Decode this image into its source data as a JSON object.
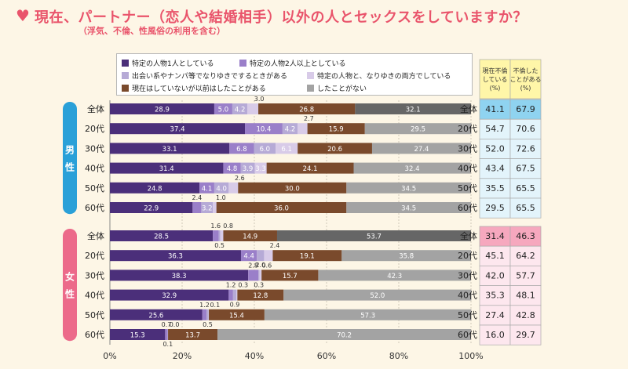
{
  "title": "現在、パートナー（恋人や結婚相手）以外の人とセックスをしていますか？",
  "subtitle": "（浮気、不倫、性風俗の利用を含む）",
  "colors": [
    "#4b2f7a",
    "#9a7fc9",
    "#b6aad6",
    "#d8cbe8",
    "#7a4a2c",
    "#a3a3a3"
  ],
  "overall_color": "#666666",
  "chart_data": {
    "type": "bar",
    "orientation": "horizontal-stacked-100",
    "xlim": [
      0,
      100
    ],
    "xticks": [
      "0%",
      "20%",
      "40%",
      "60%",
      "80%",
      "100%"
    ],
    "legend": [
      "特定の人物1人としている",
      "特定の人物2人以上としている",
      "出会い系やナンパ等でなりゆきでするときがある",
      "特定の人物と、なりゆきの両方でしている",
      "現在はしていないが以前はしたことがある",
      "したことがない"
    ],
    "groups": [
      {
        "label": "男性",
        "rows": [
          {
            "label": "全体",
            "values": [
              28.9,
              5.0,
              4.2,
              3.0,
              26.8,
              32.1
            ],
            "current": "41.1",
            "ever": "67.9"
          },
          {
            "label": "20代",
            "values": [
              37.4,
              10.4,
              4.2,
              2.7,
              15.9,
              29.5
            ],
            "current": "54.7",
            "ever": "70.6"
          },
          {
            "label": "30代",
            "values": [
              33.1,
              6.8,
              6.0,
              6.1,
              20.6,
              27.4
            ],
            "current": "52.0",
            "ever": "72.6"
          },
          {
            "label": "40代",
            "values": [
              31.4,
              4.8,
              3.9,
              3.3,
              24.1,
              32.4
            ],
            "current": "43.4",
            "ever": "67.5"
          },
          {
            "label": "50代",
            "values": [
              24.8,
              4.1,
              4.0,
              2.6,
              30.0,
              34.5
            ],
            "current": "35.5",
            "ever": "65.5"
          },
          {
            "label": "60代",
            "values": [
              22.9,
              2.4,
              3.2,
              1.0,
              36.0,
              34.5
            ],
            "current": "29.5",
            "ever": "65.5"
          }
        ]
      },
      {
        "label": "女性",
        "rows": [
          {
            "label": "全体",
            "values": [
              28.5,
              1.6,
              0.5,
              0.8,
              14.9,
              53.7
            ],
            "current": "31.4",
            "ever": "46.3"
          },
          {
            "label": "20代",
            "values": [
              36.3,
              4.4,
              2.0,
              2.4,
              19.1,
              35.8
            ],
            "current": "45.1",
            "ever": "64.2"
          },
          {
            "label": "30代",
            "values": [
              38.3,
              2.8,
              0.3,
              0.6,
              15.7,
              42.3
            ],
            "current": "42.0",
            "ever": "57.7"
          },
          {
            "label": "40代",
            "values": [
              32.9,
              1.2,
              0.9,
              0.3,
              12.8,
              52.0
            ],
            "current": "35.3",
            "ever": "48.1"
          },
          {
            "label": "50代",
            "values": [
              25.6,
              1.2,
              0.5,
              0.1,
              15.4,
              57.3
            ],
            "current": "27.4",
            "ever": "42.8"
          },
          {
            "label": "60代",
            "values": [
              15.3,
              0.7,
              0.1,
              0.0,
              13.7,
              70.2
            ],
            "current": "16.0",
            "ever": "29.7"
          }
        ]
      }
    ],
    "table_headers": [
      "現在不倫している(%)",
      "不倫したことがある(%)"
    ]
  }
}
